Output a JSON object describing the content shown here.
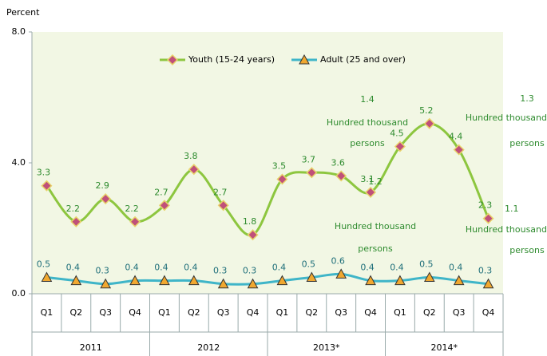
{
  "chart_data": {
    "type": "line",
    "y_label": "Percent",
    "categories": [
      "Q1",
      "Q2",
      "Q3",
      "Q4",
      "Q1",
      "Q2",
      "Q3",
      "Q4",
      "Q1",
      "Q2",
      "Q3",
      "Q4",
      "Q1",
      "Q2",
      "Q3",
      "Q4"
    ],
    "groups": [
      "2011",
      "2012",
      "2013*",
      "2014*"
    ],
    "series": [
      {
        "name": "Youth (15-24 years)",
        "color": "#8dc63f",
        "marker_color": "#c0507a",
        "label_color": "#2e8b2e",
        "values": [
          3.3,
          2.2,
          2.9,
          2.2,
          2.7,
          3.8,
          2.7,
          1.8,
          3.5,
          3.7,
          3.6,
          3.1,
          4.5,
          5.2,
          4.4,
          2.3
        ]
      },
      {
        "name": "Adult (25 and over)",
        "color": "#3fb5c8",
        "marker_color": "#f0a830",
        "label_color": "#1f6f7a",
        "values": [
          0.5,
          0.4,
          0.3,
          0.4,
          0.4,
          0.4,
          0.3,
          0.3,
          0.4,
          0.5,
          0.6,
          0.4,
          0.4,
          0.5,
          0.4,
          0.3
        ]
      }
    ],
    "ylim": [
      0,
      8
    ],
    "yticks": [
      {
        "value": 0,
        "label": "0.0"
      },
      {
        "value": 4,
        "label": "4.0"
      },
      {
        "value": 8,
        "label": "8.0"
      }
    ],
    "annotations": [
      {
        "number": "1.4",
        "lines": [
          "Hundred thousand",
          "persons"
        ]
      },
      {
        "number": "1.3",
        "lines": [
          "Hundred thousand",
          "persons"
        ]
      },
      {
        "number": "1.2",
        "lines": [
          "Hundred thousand",
          "persons"
        ]
      },
      {
        "number": "1.1",
        "lines": [
          "Hundred thousand",
          "persons"
        ]
      }
    ]
  }
}
